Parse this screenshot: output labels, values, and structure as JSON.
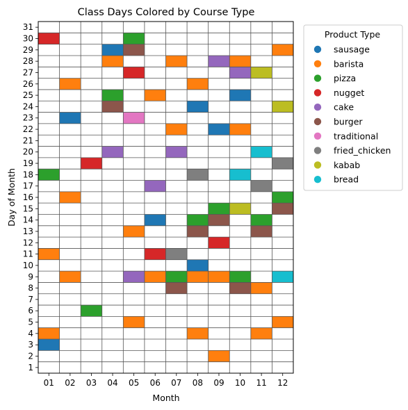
{
  "chart_data": {
    "type": "heatmap",
    "title": "Class Days Colored by Course Type",
    "xlabel": "Month",
    "ylabel": "Day of Month",
    "months": [
      "01",
      "02",
      "03",
      "04",
      "05",
      "06",
      "07",
      "08",
      "09",
      "10",
      "11",
      "12"
    ],
    "days": [
      1,
      2,
      3,
      4,
      5,
      6,
      7,
      8,
      9,
      10,
      11,
      12,
      13,
      14,
      15,
      16,
      17,
      18,
      19,
      20,
      21,
      22,
      23,
      24,
      25,
      26,
      27,
      28,
      29,
      30,
      31
    ],
    "legend": {
      "title": "Product Type",
      "placement": "outside-right",
      "items": [
        {
          "name": "sausage",
          "color": "#1f77b4"
        },
        {
          "name": "barista",
          "color": "#ff7f0e"
        },
        {
          "name": "pizza",
          "color": "#2ca02c"
        },
        {
          "name": "nugget",
          "color": "#d62728"
        },
        {
          "name": "cake",
          "color": "#9467bd"
        },
        {
          "name": "burger",
          "color": "#8c564b"
        },
        {
          "name": "traditional",
          "color": "#e377c2"
        },
        {
          "name": "fried_chicken",
          "color": "#7f7f7f"
        },
        {
          "name": "kabab",
          "color": "#bcbd22"
        },
        {
          "name": "bread",
          "color": "#17becf"
        }
      ]
    },
    "cells": [
      {
        "month": "01",
        "day": 30,
        "type": "nugget"
      },
      {
        "month": "01",
        "day": 18,
        "type": "pizza"
      },
      {
        "month": "01",
        "day": 11,
        "type": "barista"
      },
      {
        "month": "01",
        "day": 4,
        "type": "barista"
      },
      {
        "month": "01",
        "day": 3,
        "type": "sausage"
      },
      {
        "month": "02",
        "day": 26,
        "type": "barista"
      },
      {
        "month": "02",
        "day": 23,
        "type": "sausage"
      },
      {
        "month": "02",
        "day": 16,
        "type": "barista"
      },
      {
        "month": "02",
        "day": 9,
        "type": "barista"
      },
      {
        "month": "03",
        "day": 19,
        "type": "nugget"
      },
      {
        "month": "03",
        "day": 6,
        "type": "pizza"
      },
      {
        "month": "04",
        "day": 29,
        "type": "sausage"
      },
      {
        "month": "04",
        "day": 28,
        "type": "barista"
      },
      {
        "month": "04",
        "day": 25,
        "type": "pizza"
      },
      {
        "month": "04",
        "day": 24,
        "type": "burger"
      },
      {
        "month": "04",
        "day": 20,
        "type": "cake"
      },
      {
        "month": "05",
        "day": 30,
        "type": "pizza"
      },
      {
        "month": "05",
        "day": 29,
        "type": "burger"
      },
      {
        "month": "05",
        "day": 27,
        "type": "nugget"
      },
      {
        "month": "05",
        "day": 23,
        "type": "traditional"
      },
      {
        "month": "05",
        "day": 13,
        "type": "barista"
      },
      {
        "month": "05",
        "day": 9,
        "type": "cake"
      },
      {
        "month": "05",
        "day": 5,
        "type": "barista"
      },
      {
        "month": "06",
        "day": 25,
        "type": "barista"
      },
      {
        "month": "06",
        "day": 17,
        "type": "cake"
      },
      {
        "month": "06",
        "day": 14,
        "type": "sausage"
      },
      {
        "month": "06",
        "day": 11,
        "type": "nugget"
      },
      {
        "month": "06",
        "day": 9,
        "type": "barista"
      },
      {
        "month": "07",
        "day": 28,
        "type": "barista"
      },
      {
        "month": "07",
        "day": 22,
        "type": "barista"
      },
      {
        "month": "07",
        "day": 20,
        "type": "cake"
      },
      {
        "month": "07",
        "day": 11,
        "type": "fried_chicken"
      },
      {
        "month": "07",
        "day": 9,
        "type": "pizza"
      },
      {
        "month": "07",
        "day": 8,
        "type": "burger"
      },
      {
        "month": "08",
        "day": 26,
        "type": "barista"
      },
      {
        "month": "08",
        "day": 24,
        "type": "sausage"
      },
      {
        "month": "08",
        "day": 18,
        "type": "fried_chicken"
      },
      {
        "month": "08",
        "day": 14,
        "type": "pizza"
      },
      {
        "month": "08",
        "day": 13,
        "type": "burger"
      },
      {
        "month": "08",
        "day": 10,
        "type": "sausage"
      },
      {
        "month": "08",
        "day": 9,
        "type": "barista"
      },
      {
        "month": "08",
        "day": 4,
        "type": "barista"
      },
      {
        "month": "09",
        "day": 28,
        "type": "cake"
      },
      {
        "month": "09",
        "day": 22,
        "type": "sausage"
      },
      {
        "month": "09",
        "day": 15,
        "type": "pizza"
      },
      {
        "month": "09",
        "day": 14,
        "type": "burger"
      },
      {
        "month": "09",
        "day": 12,
        "type": "nugget"
      },
      {
        "month": "09",
        "day": 9,
        "type": "barista"
      },
      {
        "month": "09",
        "day": 2,
        "type": "barista"
      },
      {
        "month": "10",
        "day": 28,
        "type": "barista"
      },
      {
        "month": "10",
        "day": 27,
        "type": "cake"
      },
      {
        "month": "10",
        "day": 25,
        "type": "sausage"
      },
      {
        "month": "10",
        "day": 22,
        "type": "barista"
      },
      {
        "month": "10",
        "day": 18,
        "type": "bread"
      },
      {
        "month": "10",
        "day": 15,
        "type": "kabab"
      },
      {
        "month": "10",
        "day": 9,
        "type": "pizza"
      },
      {
        "month": "10",
        "day": 8,
        "type": "burger"
      },
      {
        "month": "11",
        "day": 27,
        "type": "kabab"
      },
      {
        "month": "11",
        "day": 20,
        "type": "bread"
      },
      {
        "month": "11",
        "day": 17,
        "type": "fried_chicken"
      },
      {
        "month": "11",
        "day": 14,
        "type": "pizza"
      },
      {
        "month": "11",
        "day": 13,
        "type": "burger"
      },
      {
        "month": "11",
        "day": 8,
        "type": "barista"
      },
      {
        "month": "11",
        "day": 4,
        "type": "barista"
      },
      {
        "month": "12",
        "day": 29,
        "type": "barista"
      },
      {
        "month": "12",
        "day": 24,
        "type": "kabab"
      },
      {
        "month": "12",
        "day": 19,
        "type": "fried_chicken"
      },
      {
        "month": "12",
        "day": 16,
        "type": "pizza"
      },
      {
        "month": "12",
        "day": 15,
        "type": "burger"
      },
      {
        "month": "12",
        "day": 9,
        "type": "bread"
      },
      {
        "month": "12",
        "day": 5,
        "type": "barista"
      }
    ]
  }
}
